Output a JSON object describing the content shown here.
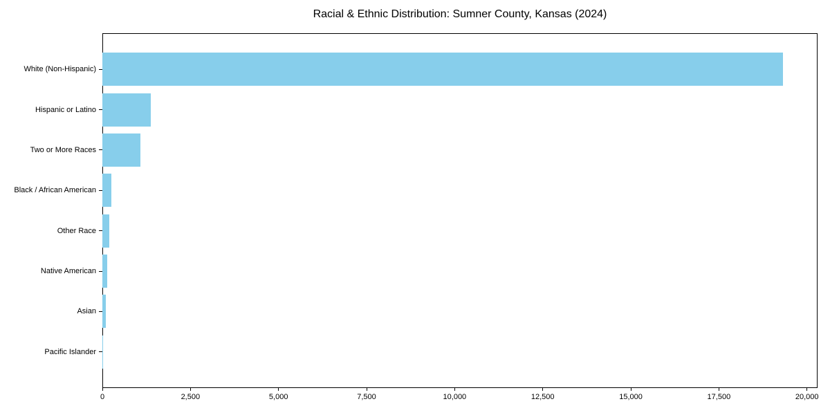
{
  "title": "Racial & Ethnic Distribution: Sumner County, Kansas (2024)",
  "colors": {
    "bar": "#87CEEB",
    "axis": "#000000",
    "background": "#FFFFFF"
  },
  "chart_data": {
    "type": "bar",
    "orientation": "horizontal",
    "title": "Racial & Ethnic Distribution: Sumner County, Kansas (2024)",
    "categories": [
      "White (Non-Hispanic)",
      "Hispanic or Latino",
      "Two or More Races",
      "Black / African American",
      "Other Race",
      "Native American",
      "Asian",
      "Pacific Islander"
    ],
    "values": [
      19320,
      1380,
      1075,
      260,
      200,
      140,
      105,
      10
    ],
    "xlabel": "",
    "ylabel": "",
    "xlim": [
      0,
      20300
    ],
    "xticks": [
      0,
      2500,
      5000,
      7500,
      10000,
      12500,
      15000,
      17500,
      20000
    ],
    "xtick_labels": [
      "0",
      "2,500",
      "5,000",
      "7,500",
      "10,000",
      "12,500",
      "15,000",
      "17,500",
      "20,000"
    ],
    "grid": false,
    "legend": null,
    "bar_color": "#87CEEB"
  }
}
